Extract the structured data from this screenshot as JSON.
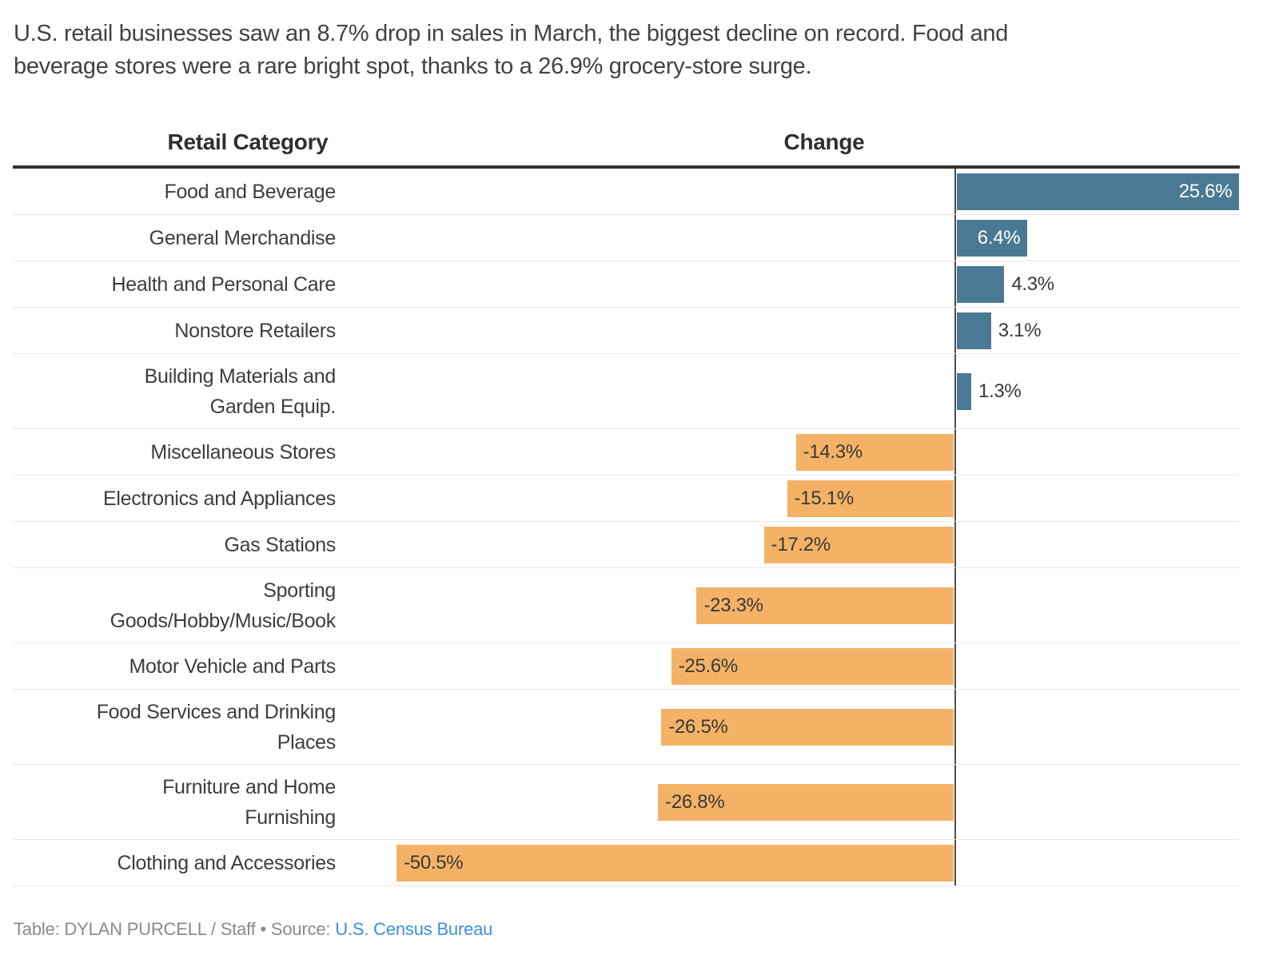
{
  "intro": {
    "line1": "U.S. retail businesses saw an 8.7% drop in sales in March, the biggest decline on record. Food and",
    "line2": "beverage stores were a rare bright spot, thanks to a 26.9% grocery-store surge."
  },
  "header": {
    "category": "Retail Category",
    "change": "Change"
  },
  "chart_data": {
    "type": "bar",
    "orientation": "horizontal",
    "title": "U.S. retail businesses saw an 8.7% drop in sales in March, the biggest decline on record. Food and beverage stores were a rare bright spot, thanks to a 26.9% grocery-store surge.",
    "columns": [
      "Retail Category",
      "Change"
    ],
    "categories": [
      "Food and Beverage",
      "General Merchandise",
      "Health and Personal Care",
      "Nonstore Retailers",
      "Building Materials and Garden Equip.",
      "Miscellaneous Stores",
      "Electronics and Appliances",
      "Gas Stations",
      "Sporting Goods/Hobby/Music/Book",
      "Motor Vehicle and Parts",
      "Food Services and Drinking Places",
      "Furniture and Home Furnishing",
      "Clothing and Accessories"
    ],
    "category_lines": [
      [
        "Food and Beverage"
      ],
      [
        "General Merchandise"
      ],
      [
        "Health and Personal Care"
      ],
      [
        "Nonstore Retailers"
      ],
      [
        "Building Materials and",
        "Garden Equip."
      ],
      [
        "Miscellaneous Stores"
      ],
      [
        "Electronics and Appliances"
      ],
      [
        "Gas Stations"
      ],
      [
        "Sporting",
        "Goods/Hobby/Music/Book"
      ],
      [
        "Motor Vehicle and Parts"
      ],
      [
        "Food Services and Drinking",
        "Places"
      ],
      [
        "Furniture and Home",
        "Furnishing"
      ],
      [
        "Clothing and Accessories"
      ]
    ],
    "values": [
      25.6,
      6.4,
      4.3,
      3.1,
      1.3,
      -14.3,
      -15.1,
      -17.2,
      -23.3,
      -25.6,
      -26.5,
      -26.8,
      -50.5
    ],
    "value_labels": [
      "25.6%",
      "6.4%",
      "4.3%",
      "3.1%",
      "1.3%",
      "-14.3%",
      "-15.1%",
      "-17.2%",
      "-23.3%",
      "-25.6%",
      "-26.5%",
      "-26.8%",
      "-50.5%"
    ],
    "xlim": [
      -50.5,
      25.6
    ],
    "grid": "row-dividers-only",
    "legend": "none",
    "colors": {
      "positive": "#4a7a93",
      "negative": "#f4b266",
      "zero_line": "#4d4d4d",
      "header_rule": "#333333",
      "row_divider": "#e7e7e7",
      "label_text": "#3d3d3d",
      "value_text_on_bar_blue": "#ffffff",
      "value_text_dark": "#383838"
    }
  },
  "footer": {
    "credit": "Table: DYLAN PURCELL / Staff",
    "separator": "•",
    "source_label": "Source:",
    "source_link": "U.S. Census Bureau"
  }
}
